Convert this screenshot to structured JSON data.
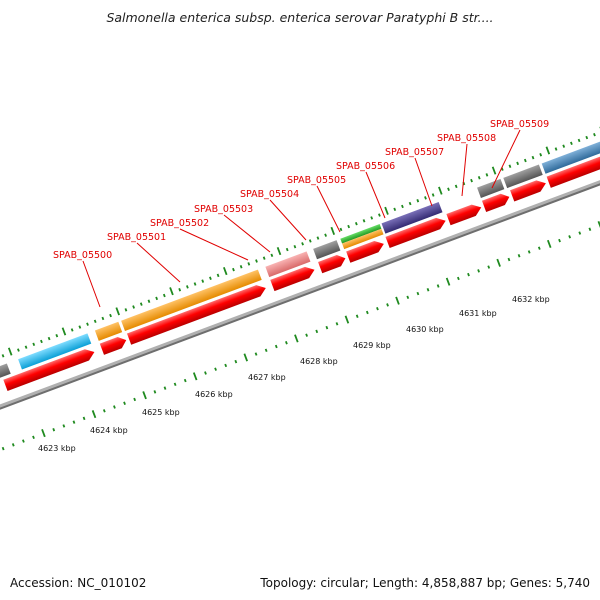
{
  "header": {
    "title": "Salmonella enterica subsp. enterica serovar Paratyphi B str...."
  },
  "footer": {
    "accession": "Accession: NC_010102",
    "info": "Topology: circular; Length: 4,858,887 bp; Genes: 5,740"
  },
  "scale_labels": [
    "4623 kbp",
    "4624 kbp",
    "4625 kbp",
    "4626 kbp",
    "4627 kbp",
    "4628 kbp",
    "4629 kbp",
    "4630 kbp",
    "4631 kbp",
    "4632 kbp"
  ],
  "gene_labels": [
    "SPAB_05500",
    "SPAB_05501",
    "SPAB_05502",
    "SPAB_05503",
    "SPAB_05504",
    "SPAB_05505",
    "SPAB_05506",
    "SPAB_05507",
    "SPAB_05508",
    "SPAB_05509"
  ],
  "colors": {
    "cds": "#ff0000",
    "label": "#e00000",
    "backbone": "#909090",
    "tick": "#1f8a1f",
    "feature_gray": "#707070",
    "feature_cyan": "#1cb8ef",
    "feature_orange": "#ff9a00",
    "feature_pink": "#f08080",
    "feature_green": "#33bb33",
    "feature_navy": "#4a3f8f",
    "feature_steel": "#4682b4",
    "feature_purple": "#7b68ee"
  }
}
